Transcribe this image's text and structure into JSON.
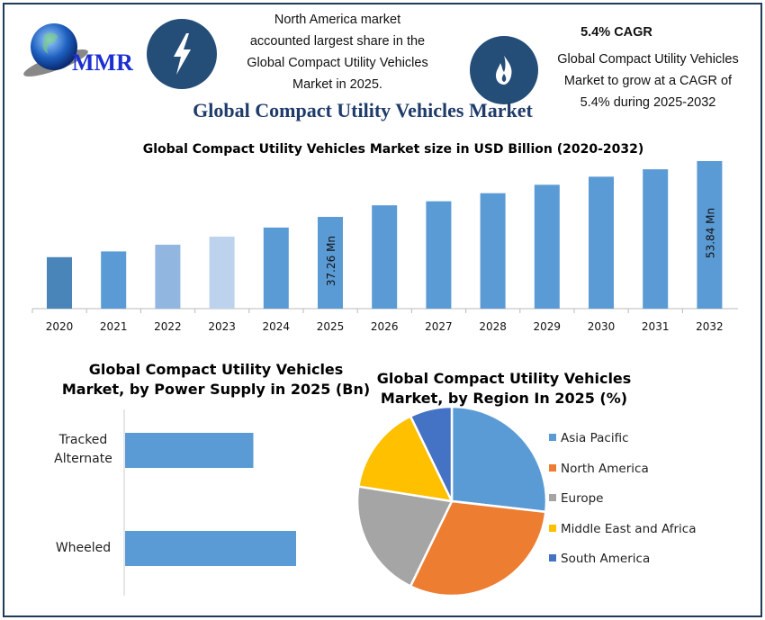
{
  "header": {
    "logo_text": "MMR",
    "info_left": {
      "icon": "lightning-bolt-icon",
      "lines": [
        "North America market",
        "accounted largest share in the",
        "Global Compact Utility Vehicles",
        "Market in 2025."
      ]
    },
    "info_right": {
      "icon": "flame-icon",
      "heading": "5.4% CAGR",
      "lines": [
        "Global Compact Utility Vehicles",
        "Market to grow at a CAGR of",
        "5.4% during 2025-2032"
      ]
    },
    "title": "Global Compact Utility Vehicles Market"
  },
  "chart_data": [
    {
      "type": "bar",
      "title": "Global Compact Utility Vehicles Market size in USD Billion (2020-2032)",
      "categories": [
        "2020",
        "2021",
        "2022",
        "2023",
        "2024",
        "2025",
        "2026",
        "2027",
        "2028",
        "2029",
        "2030",
        "2031",
        "2032"
      ],
      "values": [
        25.3,
        27.0,
        29.0,
        31.4,
        34.1,
        37.26,
        40.7,
        41.9,
        44.3,
        46.8,
        49.2,
        51.4,
        53.84
      ],
      "data_labels": {
        "2025": "37.26 Mn",
        "2032": "53.84 Mn"
      },
      "colors": [
        "#4a85b9",
        "#5b9bd5",
        "#91b6df",
        "#bdd2ec",
        "#5b9bd5",
        "#5b9bd5",
        "#5b9bd5",
        "#5b9bd5",
        "#5b9bd5",
        "#5b9bd5",
        "#5b9bd5",
        "#5b9bd5",
        "#5b9bd5"
      ],
      "ylim": [
        10,
        56
      ],
      "grid": false
    },
    {
      "type": "bar",
      "orientation": "horizontal",
      "title": "Global Compact Utility Vehicles Market, by Power Supply in 2025 (Bn)",
      "title_lines": [
        "Global Compact Utility Vehicles",
        "Market, by Power Supply in 2025 (Bn)"
      ],
      "categories": [
        "Tracked Alternate",
        "Wheeled"
      ],
      "category_lines": [
        [
          "Tracked",
          "Alternate"
        ],
        [
          "Wheeled"
        ]
      ],
      "values": [
        0.75,
        1.0
      ],
      "color": "#5b9bd5"
    },
    {
      "type": "pie",
      "title": "Global Compact Utility Vehicles Market, by Region In 2025 (%)",
      "title_lines": [
        "Global Compact Utility Vehicles",
        "Market, by Region In 2025 (%)"
      ],
      "categories": [
        "Asia Pacific",
        "North America",
        "Europe",
        "Middle East and Africa",
        "South America"
      ],
      "values": [
        26.8,
        30.4,
        20.3,
        15.3,
        7.2
      ],
      "colors": [
        "#5b9bd5",
        "#ed7d31",
        "#a5a5a5",
        "#ffc000",
        "#4472c4"
      ],
      "legend": "right"
    }
  ]
}
